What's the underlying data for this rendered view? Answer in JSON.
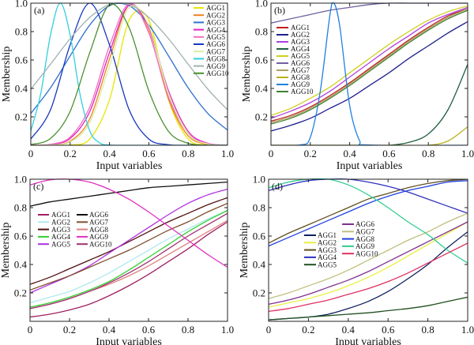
{
  "chart_data": [
    {
      "type": "line",
      "panel_label": "(a)",
      "xlabel": "Input variables",
      "ylabel": "Membership",
      "xlim": [
        0,
        1
      ],
      "ylim": [
        0,
        1
      ],
      "xticks": [
        "0",
        "0.2",
        "0.4",
        "0.6",
        "0.8",
        "1.0"
      ],
      "yticks": [
        "0.2",
        "0.4",
        "0.6",
        "0.8",
        "1.0"
      ],
      "legend": "top-right",
      "x": [
        0,
        0.1,
        0.2,
        0.3,
        0.4,
        0.5,
        0.6,
        0.7,
        0.8,
        0.9,
        1.0
      ],
      "series": [
        {
          "name": "AGG1",
          "color": "#e6e600",
          "values": [
            0,
            0,
            0.002,
            0.044,
            0.32,
            0.88,
            0.88,
            0.32,
            0.044,
            0.002,
            0
          ]
        },
        {
          "name": "AGG2",
          "color": "#f08020",
          "values": [
            0,
            0.002,
            0.029,
            0.186,
            0.607,
            0.986,
            0.8,
            0.325,
            0.066,
            0.007,
            0
          ]
        },
        {
          "name": "AGG3",
          "color": "#3070d0",
          "values": [
            0.224,
            0.404,
            0.629,
            0.847,
            0.982,
            0.982,
            0.847,
            0.629,
            0.404,
            0.224,
            0.107
          ]
        },
        {
          "name": "AGG4",
          "color": "#e020c0",
          "values": [
            0,
            0.005,
            0.048,
            0.238,
            0.653,
            0.988,
            0.827,
            0.383,
            0.098,
            0.014,
            0.001
          ]
        },
        {
          "name": "AGG5",
          "color": "#f070c0",
          "values": [
            0,
            0.007,
            0.058,
            0.27,
            0.7,
            0.997,
            0.79,
            0.34,
            0.083,
            0.011,
            0.001
          ]
        },
        {
          "name": "AGG6",
          "color": "#1838c0",
          "values": [
            0.044,
            0.249,
            0.707,
            1,
            0.707,
            0.249,
            0.044,
            0.004,
            0,
            0,
            0
          ]
        },
        {
          "name": "AGG7",
          "color": "#d8f0a0",
          "values": [
            0,
            0.002,
            0.023,
            0.16,
            0.556,
            0.969,
            0.84,
            0.366,
            0.08,
            0.009,
            0
          ]
        },
        {
          "name": "AGG8",
          "color": "#30d0e0",
          "x": [
            0,
            0.05,
            0.1,
            0.15,
            0.2,
            0.25,
            0.3,
            0.35,
            0.4,
            0.5,
            1.0
          ],
          "values": [
            0.1,
            0.36,
            0.775,
            1,
            0.775,
            0.36,
            0.1,
            0.017,
            0.002,
            0,
            0
          ]
        },
        {
          "name": "AGG9",
          "color": "#a0b0b0",
          "values": [
            0.395,
            0.57,
            0.75,
            0.9,
            0.99,
            0.99,
            0.9,
            0.75,
            0.57,
            0.395,
            0.249
          ]
        },
        {
          "name": "AGG10",
          "color": "#4a9030",
          "values": [
            0.005,
            0.048,
            0.239,
            0.653,
            0.988,
            0.827,
            0.383,
            0.098,
            0.014,
            0.001,
            0
          ]
        }
      ]
    },
    {
      "type": "line",
      "panel_label": "(b)",
      "xlabel": "Input variables",
      "ylabel": "Membership",
      "xlim": [
        0,
        1
      ],
      "ylim": [
        0,
        1
      ],
      "xticks": [
        "0",
        "0.2",
        "0.4",
        "0.6",
        "0.8",
        "1.0"
      ],
      "yticks": [
        "0.2",
        "0.4",
        "0.6",
        "0.8",
        "1.0"
      ],
      "legend": "left",
      "x": [
        0,
        0.1,
        0.2,
        0.3,
        0.4,
        0.5,
        0.6,
        0.7,
        0.8,
        0.9,
        1.0
      ],
      "series": [
        {
          "name": "AGG1",
          "color": "#c02020",
          "values": [
            0.17,
            0.21,
            0.27,
            0.35,
            0.44,
            0.54,
            0.64,
            0.74,
            0.83,
            0.91,
            0.96
          ]
        },
        {
          "name": "AGG2",
          "color": "#202090",
          "values": [
            0.1,
            0.14,
            0.19,
            0.26,
            0.33,
            0.42,
            0.51,
            0.61,
            0.7,
            0.79,
            0.87
          ]
        },
        {
          "name": "AGG3",
          "color": "#b040e0",
          "values": [
            0.19,
            0.24,
            0.3,
            0.38,
            0.48,
            0.58,
            0.68,
            0.77,
            0.86,
            0.92,
            0.97
          ]
        },
        {
          "name": "AGG4",
          "color": "#206040",
          "values": [
            0,
            0,
            0,
            0,
            0,
            0,
            0,
            0.02,
            0.08,
            0.25,
            0.57
          ]
        },
        {
          "name": "AGG5",
          "color": "#d0d020",
          "values": [
            0.21,
            0.26,
            0.33,
            0.41,
            0.51,
            0.61,
            0.71,
            0.8,
            0.88,
            0.94,
            0.98
          ]
        },
        {
          "name": "AGG6",
          "color": "#7060a0",
          "values": [
            0.86,
            0.89,
            0.92,
            0.95,
            0.97,
            0.99,
            1,
            1,
            1,
            1,
            1
          ]
        },
        {
          "name": "AGG7",
          "color": "#b0a060",
          "values": [
            0.16,
            0.2,
            0.26,
            0.34,
            0.43,
            0.53,
            0.63,
            0.73,
            0.82,
            0.9,
            0.96
          ]
        },
        {
          "name": "AGG8",
          "color": "#b8b020",
          "values": [
            0,
            0,
            0,
            0,
            0,
            0,
            0,
            0,
            0,
            0.03,
            0.13
          ]
        },
        {
          "name": "AGG9",
          "color": "#2080e0",
          "x": [
            0,
            0.15,
            0.2,
            0.25,
            0.3,
            0.32,
            0.35,
            0.4,
            0.45,
            0.5,
            1.0
          ],
          "values": [
            0,
            0.003,
            0.056,
            0.375,
            0.92,
            1,
            0.835,
            0.28,
            0.034,
            0.002,
            0
          ]
        },
        {
          "name": "AGG10",
          "color": "#408030",
          "values": [
            0.15,
            0.19,
            0.25,
            0.33,
            0.42,
            0.52,
            0.62,
            0.72,
            0.81,
            0.89,
            0.95
          ]
        }
      ]
    },
    {
      "type": "line",
      "panel_label": "(c)",
      "xlabel": "Input variables",
      "ylabel": "Membership",
      "xlim": [
        0,
        1
      ],
      "ylim": [
        0,
        1
      ],
      "xticks": [
        "0",
        "0.2",
        "0.4",
        "0.6",
        "0.8",
        "1.0"
      ],
      "yticks": [
        "0.2",
        "0.4",
        "0.6",
        "0.8",
        "1.0"
      ],
      "legend": "center-left",
      "x": [
        0,
        0.1,
        0.2,
        0.3,
        0.4,
        0.5,
        0.6,
        0.7,
        0.8,
        0.9,
        1.0
      ],
      "series": [
        {
          "name": "AGG1",
          "color": "#a02060",
          "values": [
            0.03,
            0.05,
            0.08,
            0.12,
            0.18,
            0.25,
            0.33,
            0.42,
            0.51,
            0.61,
            0.7
          ]
        },
        {
          "name": "AGG2",
          "color": "#b0e8f0",
          "values": [
            0.13,
            0.17,
            0.21,
            0.27,
            0.34,
            0.42,
            0.5,
            0.58,
            0.65,
            0.72,
            0.78
          ]
        },
        {
          "name": "AGG3",
          "color": "#501010",
          "values": [
            0.26,
            0.31,
            0.37,
            0.43,
            0.49,
            0.56,
            0.63,
            0.7,
            0.76,
            0.82,
            0.87
          ]
        },
        {
          "name": "AGG4",
          "color": "#30d030",
          "values": [
            0.1,
            0.13,
            0.17,
            0.22,
            0.28,
            0.36,
            0.45,
            0.54,
            0.63,
            0.71,
            0.78
          ]
        },
        {
          "name": "AGG5",
          "color": "#b030e0",
          "values": [
            0.2,
            0.26,
            0.32,
            0.39,
            0.48,
            0.57,
            0.66,
            0.75,
            0.83,
            0.89,
            0.93
          ]
        },
        {
          "name": "AGG6",
          "color": "#101010",
          "values": [
            0.81,
            0.84,
            0.86,
            0.88,
            0.9,
            0.92,
            0.94,
            0.95,
            0.96,
            0.97,
            0.98
          ]
        },
        {
          "name": "AGG7",
          "color": "#805030",
          "values": [
            0.22,
            0.27,
            0.32,
            0.38,
            0.44,
            0.5,
            0.57,
            0.64,
            0.7,
            0.77,
            0.83
          ]
        },
        {
          "name": "AGG8",
          "color": "#e08080",
          "values": [
            0.09,
            0.12,
            0.16,
            0.21,
            0.26,
            0.32,
            0.39,
            0.47,
            0.55,
            0.63,
            0.71
          ]
        },
        {
          "name": "AGG9",
          "color": "#e030c0",
          "values": [
            0.96,
            0.995,
            1,
            0.98,
            0.93,
            0.86,
            0.77,
            0.67,
            0.57,
            0.47,
            0.38
          ]
        },
        {
          "name": "AGG10",
          "color": "#a03070",
          "values": [
            0.09,
            0.12,
            0.16,
            0.21,
            0.27,
            0.34,
            0.42,
            0.51,
            0.6,
            0.68,
            0.76
          ]
        }
      ]
    },
    {
      "type": "line",
      "panel_label": "(d)",
      "xlabel": "Input variables",
      "ylabel": "Membership",
      "xlim": [
        0,
        1
      ],
      "ylim": [
        0,
        1
      ],
      "xticks": [
        "0",
        "0.2",
        "0.4",
        "0.6",
        "0.8",
        "1.0"
      ],
      "yticks": [
        "0.2",
        "0.4",
        "0.6",
        "0.8",
        "1.0"
      ],
      "legend": "center",
      "x": [
        0,
        0.1,
        0.2,
        0.3,
        0.4,
        0.5,
        0.6,
        0.7,
        0.8,
        0.9,
        1.0
      ],
      "series": [
        {
          "name": "AGG1",
          "color": "#102060",
          "values": [
            0.01,
            0.02,
            0.03,
            0.05,
            0.09,
            0.14,
            0.21,
            0.3,
            0.4,
            0.52,
            0.63
          ]
        },
        {
          "name": "AGG2",
          "color": "#e8f040",
          "values": [
            0.1,
            0.13,
            0.16,
            0.2,
            0.25,
            0.31,
            0.38,
            0.46,
            0.54,
            0.62,
            0.7
          ]
        },
        {
          "name": "AGG3",
          "color": "#605020",
          "values": [
            0.55,
            0.62,
            0.68,
            0.74,
            0.8,
            0.86,
            0.9,
            0.94,
            0.97,
            0.99,
            1
          ]
        },
        {
          "name": "AGG4",
          "color": "#3030c0",
          "values": [
            0.92,
            0.96,
            0.99,
            1,
            1,
            0.98,
            0.95,
            0.91,
            0.86,
            0.81,
            0.76
          ]
        },
        {
          "name": "AGG5",
          "color": "#205020",
          "values": [
            0.01,
            0.02,
            0.03,
            0.04,
            0.05,
            0.06,
            0.075,
            0.09,
            0.11,
            0.14,
            0.17
          ]
        },
        {
          "name": "AGG6",
          "color": "#803090",
          "values": [
            0.12,
            0.15,
            0.19,
            0.24,
            0.29,
            0.35,
            0.42,
            0.49,
            0.56,
            0.63,
            0.7
          ]
        },
        {
          "name": "AGG7",
          "color": "#c0c080",
          "values": [
            0.16,
            0.2,
            0.25,
            0.3,
            0.36,
            0.43,
            0.5,
            0.57,
            0.63,
            0.7,
            0.76
          ]
        },
        {
          "name": "AGG8",
          "color": "#2040e0",
          "values": [
            0.53,
            0.59,
            0.65,
            0.71,
            0.77,
            0.83,
            0.88,
            0.92,
            0.95,
            0.98,
            0.99
          ]
        },
        {
          "name": "AGG9",
          "color": "#30d090",
          "values": [
            0.94,
            0.98,
            1,
            1,
            0.96,
            0.89,
            0.8,
            0.7,
            0.61,
            0.5,
            0.41
          ]
        },
        {
          "name": "AGG10",
          "color": "#e03060",
          "values": [
            0.07,
            0.09,
            0.12,
            0.15,
            0.19,
            0.23,
            0.28,
            0.34,
            0.41,
            0.48,
            0.55
          ]
        }
      ]
    }
  ]
}
